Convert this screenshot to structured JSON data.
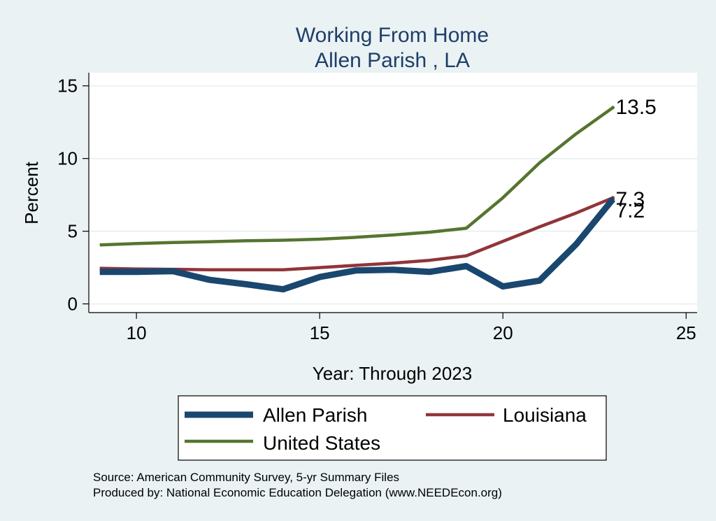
{
  "chart_data": {
    "type": "line",
    "title": "Working From Home",
    "subtitle": "Allen Parish , LA",
    "xlabel": "Year: Through 2023",
    "ylabel": "Percent",
    "xlim": [
      8.7,
      25.3
    ],
    "ylim": [
      -0.6,
      15.9
    ],
    "xticks": [
      10,
      15,
      20,
      25
    ],
    "yticks": [
      0,
      5,
      10,
      15
    ],
    "grid": true,
    "legend_position": "bottom",
    "series": [
      {
        "name": "Allen Parish",
        "color": "#1a476f",
        "x": [
          9,
          10,
          11,
          12,
          13,
          14,
          15,
          16,
          17,
          18,
          19,
          20,
          21,
          22,
          23
        ],
        "values": [
          2.2,
          2.2,
          2.25,
          1.65,
          1.35,
          1.0,
          1.85,
          2.3,
          2.35,
          2.2,
          2.6,
          1.2,
          1.6,
          4.1,
          7.2
        ],
        "end_label": "7.2"
      },
      {
        "name": "Louisiana",
        "color": "#90353b",
        "x": [
          9,
          10,
          11,
          12,
          13,
          14,
          15,
          16,
          17,
          18,
          19,
          20,
          21,
          22,
          23
        ],
        "values": [
          2.45,
          2.4,
          2.38,
          2.35,
          2.35,
          2.35,
          2.5,
          2.65,
          2.8,
          3.0,
          3.3,
          4.3,
          5.3,
          6.25,
          7.3
        ],
        "end_label": "7.3"
      },
      {
        "name": "United States",
        "color": "#55752f",
        "x": [
          9,
          10,
          11,
          12,
          13,
          14,
          15,
          16,
          17,
          18,
          19,
          20,
          21,
          22,
          23
        ],
        "values": [
          4.05,
          4.15,
          4.22,
          4.28,
          4.34,
          4.38,
          4.45,
          4.58,
          4.74,
          4.93,
          5.2,
          7.3,
          9.7,
          11.7,
          13.5
        ],
        "end_label": "13.5"
      }
    ],
    "notes": [
      "Source: American Community Survey, 5-yr Summary Files",
      "Produced by: National Economic Education Delegation (www.NEEDEcon.org)"
    ]
  }
}
